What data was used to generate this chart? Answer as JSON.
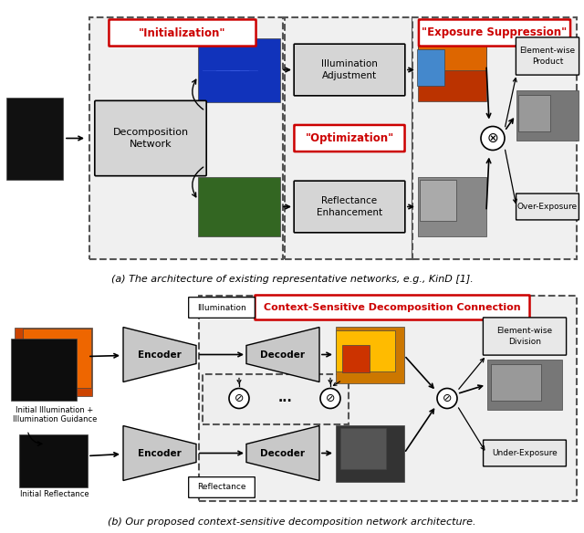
{
  "title_a": "(a) The architecture of existing representative networks, e.g., KinD [1].",
  "title_b": "(b) Our proposed context-sensitive decomposition network architecture.",
  "label_init": "\"Initialization\"",
  "label_opt": "\"Optimization\"",
  "label_exp_sup": "\"Exposure Suppression\"",
  "label_decomp": "Decomposition\nNetwork",
  "label_illum_adj": "Illumination\nAdjustment",
  "label_refl_enh": "Reflectance\nEnhancement",
  "label_elem_prod": "Element-wise\nProduct",
  "label_over_exp": "Over-Exposure",
  "label_csdc": "Context-Sensitive Decomposition Connection",
  "label_encoder": "Encoder",
  "label_decoder": "Decoder",
  "label_illum": "Illumination",
  "label_refl": "Reflectance",
  "label_init_illum": "Initial Illumination +\nIllumination Guidance",
  "label_init_refl": "Initial Reflectance",
  "label_elem_div": "Element-wise\nDivision",
  "label_under_exp": "Under-Exposure",
  "bg_color": "#ffffff",
  "box_fill": "#e0e0e0",
  "red_color": "#cc0000",
  "arrow_color": "#000000"
}
